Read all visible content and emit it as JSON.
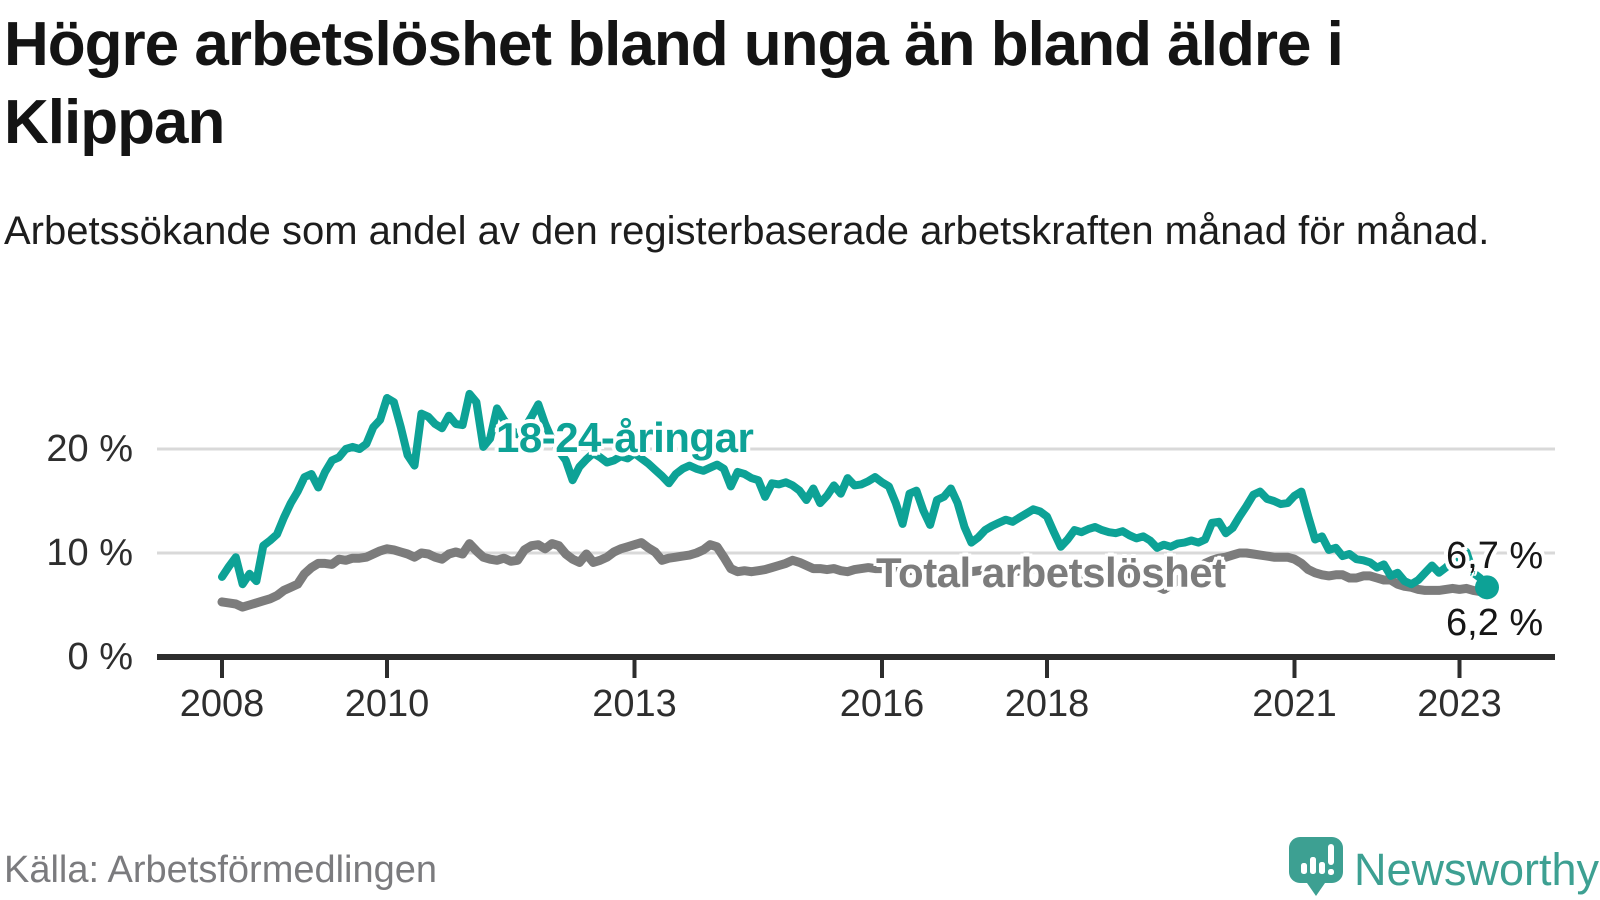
{
  "header": {
    "title": "Högre arbetslöshet bland unga än bland äldre i Klippan",
    "subtitle": "Arbetssökande som andel av den registerbaserade arbetskraften månad för månad."
  },
  "footer": {
    "source": "Källa: Arbetsförmedlingen",
    "brand": "Newsworthy",
    "brand_color": "#3da092"
  },
  "chart_data": {
    "type": "line",
    "title": "Högre arbetslöshet bland unga än bland äldre i Klippan",
    "unit": "%",
    "frequency": "monthly",
    "x_start": "2008-01",
    "x_end": "2023-05",
    "ylim": [
      0,
      27
    ],
    "grid": "horizontal",
    "grid_color": "#d9d9d9",
    "axis_color": "#2d2d2d",
    "yticks": [
      {
        "value": 0,
        "label": "0 %"
      },
      {
        "value": 10,
        "label": "10 %"
      },
      {
        "value": 20,
        "label": "20 %"
      }
    ],
    "xticks": [
      {
        "label": "2008",
        "month_index": 0
      },
      {
        "label": "2010",
        "month_index": 24
      },
      {
        "label": "2013",
        "month_index": 60
      },
      {
        "label": "2016",
        "month_index": 96
      },
      {
        "label": "2018",
        "month_index": 120
      },
      {
        "label": "2021",
        "month_index": 156
      },
      {
        "label": "2023",
        "month_index": 180
      }
    ],
    "series": [
      {
        "name": "18-24-åringar",
        "color": "#0da296",
        "end_label": "6,7 %",
        "end_value": 6.7,
        "end_dot": true,
        "line_width": 8,
        "values": [
          7.7,
          8.7,
          9.6,
          7.0,
          8.0,
          7.3,
          10.7,
          11.2,
          11.8,
          13.4,
          14.8,
          15.9,
          17.3,
          17.6,
          16.3,
          17.8,
          18.9,
          19.2,
          20.0,
          20.2,
          20.0,
          20.5,
          22.1,
          22.8,
          24.9,
          24.5,
          22.1,
          19.4,
          18.4,
          23.4,
          23.1,
          22.4,
          22.0,
          23.2,
          22.4,
          22.3,
          25.3,
          24.5,
          20.2,
          21.0,
          23.9,
          22.8,
          21.9,
          21.4,
          22.0,
          23.1,
          24.3,
          22.4,
          20.9,
          19.8,
          18.9,
          17.0,
          18.3,
          19.0,
          19.6,
          19.2,
          18.7,
          18.9,
          19.3,
          19.1,
          19.6,
          19.1,
          18.6,
          18.0,
          17.4,
          16.7,
          17.6,
          18.1,
          18.4,
          18.1,
          17.9,
          18.2,
          18.5,
          18.1,
          16.4,
          17.8,
          17.6,
          17.2,
          17.0,
          15.4,
          16.7,
          16.6,
          16.8,
          16.5,
          16.0,
          15.1,
          16.2,
          14.8,
          15.5,
          16.5,
          15.7,
          17.2,
          16.5,
          16.6,
          16.9,
          17.3,
          16.8,
          16.4,
          14.8,
          12.8,
          15.7,
          16.0,
          14.1,
          12.7,
          15.1,
          15.4,
          16.2,
          14.8,
          12.5,
          11.0,
          11.5,
          12.2,
          12.6,
          12.9,
          13.2,
          13.0,
          13.4,
          13.8,
          14.2,
          14.0,
          13.5,
          12.0,
          10.6,
          11.3,
          12.2,
          12.0,
          12.3,
          12.5,
          12.2,
          12.0,
          11.9,
          12.1,
          11.7,
          11.4,
          11.6,
          11.2,
          10.5,
          10.8,
          10.6,
          10.9,
          11.0,
          11.2,
          11.0,
          11.3,
          12.9,
          13.0,
          11.9,
          12.4,
          13.5,
          14.5,
          15.6,
          15.9,
          15.2,
          15.0,
          14.7,
          14.8,
          15.5,
          15.9,
          13.5,
          11.3,
          11.6,
          10.3,
          10.5,
          9.7,
          9.9,
          9.4,
          9.3,
          9.1,
          8.6,
          8.9,
          7.8,
          8.1,
          7.3,
          7.0,
          7.4,
          8.1,
          8.8,
          8.1,
          8.6,
          9.2,
          9.7,
          10.1,
          8.1,
          7.6,
          6.7
        ]
      },
      {
        "name": "Total arbetslöshet",
        "color": "#7c7c7c",
        "end_label": "6,2 %",
        "end_value": 6.2,
        "end_dot": false,
        "line_width": 9,
        "values": [
          5.3,
          5.2,
          5.1,
          4.8,
          5.0,
          5.2,
          5.4,
          5.6,
          5.9,
          6.4,
          6.7,
          7.0,
          8.0,
          8.6,
          9.0,
          9.0,
          8.9,
          9.4,
          9.3,
          9.5,
          9.5,
          9.6,
          9.9,
          10.2,
          10.4,
          10.3,
          10.1,
          9.9,
          9.6,
          10.0,
          9.9,
          9.6,
          9.4,
          9.9,
          10.1,
          9.9,
          10.9,
          10.2,
          9.6,
          9.4,
          9.3,
          9.5,
          9.2,
          9.3,
          10.3,
          10.7,
          10.8,
          10.4,
          10.9,
          10.7,
          9.9,
          9.4,
          9.1,
          9.9,
          9.1,
          9.3,
          9.6,
          10.1,
          10.4,
          10.6,
          10.8,
          11.0,
          10.5,
          10.1,
          9.3,
          9.5,
          9.6,
          9.7,
          9.8,
          10.0,
          10.3,
          10.8,
          10.6,
          9.6,
          8.5,
          8.2,
          8.3,
          8.2,
          8.3,
          8.4,
          8.6,
          8.8,
          9.0,
          9.3,
          9.1,
          8.8,
          8.5,
          8.5,
          8.4,
          8.5,
          8.3,
          8.2,
          8.4,
          8.5,
          8.6,
          8.5,
          8.5,
          8.4,
          8.6,
          8.5,
          8.3,
          8.4,
          8.2,
          8.3,
          8.5,
          8.6,
          8.5,
          8.4,
          8.3,
          8.2,
          8.3,
          8.4,
          8.3,
          8.2,
          8.0,
          8.1,
          8.3,
          8.4,
          8.5,
          8.4,
          8.3,
          8.2,
          8.0,
          7.9,
          7.8,
          7.9,
          7.7,
          7.8,
          8.0,
          8.1,
          8.2,
          8.1,
          8.0,
          7.8,
          7.5,
          7.2,
          6.8,
          6.5,
          6.9,
          7.4,
          7.8,
          8.2,
          8.6,
          9.0,
          9.3,
          9.5,
          9.6,
          9.8,
          10.0,
          10.0,
          9.9,
          9.8,
          9.7,
          9.6,
          9.6,
          9.6,
          9.4,
          9.0,
          8.4,
          8.1,
          7.9,
          7.8,
          7.9,
          7.9,
          7.6,
          7.6,
          7.8,
          7.8,
          7.6,
          7.4,
          7.4,
          7.0,
          6.8,
          6.7,
          6.5,
          6.4,
          6.4,
          6.4,
          6.5,
          6.6,
          6.5,
          6.6,
          6.4,
          6.3,
          6.2
        ]
      }
    ]
  }
}
